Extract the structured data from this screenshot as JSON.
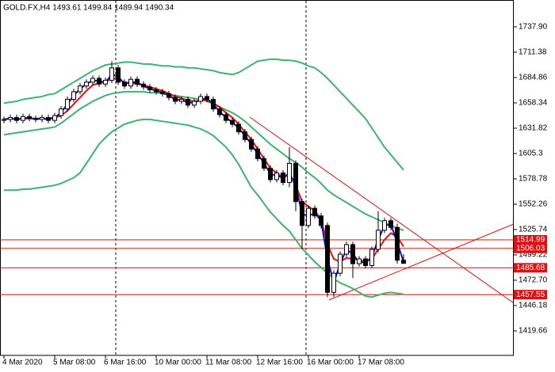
{
  "chart_data": {
    "type": "candlestick",
    "title": "GOLD.FX,H4  1493.61 1499.84 1489.94 1490.34",
    "categories": [
      "4 Mar 2020",
      null,
      null,
      null,
      null,
      null,
      null,
      null,
      "5 Mar 08:00",
      null,
      null,
      null,
      null,
      null,
      null,
      null,
      "6 Mar 16:00",
      null,
      null,
      null,
      null,
      null,
      null,
      null,
      "10 Mar 00:00",
      null,
      null,
      null,
      null,
      null,
      null,
      null,
      "11 Mar 08:00",
      null,
      null,
      null,
      null,
      null,
      null,
      null,
      "12 Mar 16:00",
      null,
      null,
      null,
      null,
      null,
      null,
      null,
      "16 Mar 00:00",
      null,
      null,
      null,
      null,
      null,
      null,
      null,
      "17 Mar 08:00",
      null,
      null,
      null,
      null,
      null,
      null,
      null
    ],
    "open": [
      1640,
      1641,
      1643,
      1640,
      1644,
      1642,
      1641,
      1643,
      1640,
      1645,
      1652,
      1662,
      1670,
      1676,
      1680,
      1684,
      1678,
      1682,
      1695,
      1680,
      1676,
      1683,
      1678,
      1675,
      1672,
      1670,
      1668,
      1664,
      1660,
      1662,
      1656,
      1660,
      1665,
      1662,
      1652,
      1646,
      1640,
      1636,
      1628,
      1620,
      1610,
      1600,
      1590,
      1578,
      1585,
      1575,
      1595,
      1555,
      1530,
      1548,
      1540,
      1530,
      1460,
      1480,
      1500,
      1510,
      1490,
      1495,
      1488,
      1505,
      1525,
      1535,
      1528,
      1493.61
    ],
    "high": [
      1644,
      1646,
      1646,
      1647,
      1647,
      1645,
      1646,
      1646,
      1648,
      1655,
      1665,
      1673,
      1679,
      1683,
      1687,
      1687,
      1685,
      1702,
      1698,
      1683,
      1686,
      1686,
      1681,
      1678,
      1675,
      1673,
      1671,
      1667,
      1665,
      1665,
      1663,
      1668,
      1668,
      1665,
      1655,
      1649,
      1643,
      1639,
      1631,
      1623,
      1613,
      1603,
      1593,
      1588,
      1588,
      1612,
      1598,
      1558,
      1551,
      1551,
      1543,
      1533,
      1483,
      1503,
      1513,
      1513,
      1498,
      1498,
      1508,
      1545,
      1538,
      1538,
      1532,
      1499.84
    ],
    "low": [
      1637,
      1638,
      1637,
      1637,
      1639,
      1638,
      1638,
      1637,
      1637,
      1642,
      1649,
      1659,
      1667,
      1673,
      1677,
      1675,
      1675,
      1679,
      1677,
      1673,
      1673,
      1675,
      1672,
      1669,
      1667,
      1665,
      1661,
      1657,
      1657,
      1653,
      1653,
      1657,
      1659,
      1649,
      1643,
      1637,
      1633,
      1625,
      1617,
      1607,
      1597,
      1587,
      1575,
      1575,
      1572,
      1570,
      1545,
      1505,
      1527,
      1537,
      1527,
      1455,
      1455,
      1477,
      1497,
      1475,
      1487,
      1485,
      1485,
      1502,
      1522,
      1525,
      1490,
      1489.94
    ],
    "close": [
      1641,
      1643,
      1640,
      1644,
      1642,
      1641,
      1643,
      1640,
      1645,
      1652,
      1662,
      1670,
      1676,
      1680,
      1684,
      1678,
      1682,
      1695,
      1680,
      1676,
      1683,
      1678,
      1675,
      1672,
      1670,
      1668,
      1664,
      1660,
      1662,
      1656,
      1660,
      1665,
      1662,
      1652,
      1646,
      1640,
      1636,
      1628,
      1620,
      1610,
      1600,
      1590,
      1578,
      1585,
      1575,
      1595,
      1555,
      1530,
      1548,
      1540,
      1530,
      1460,
      1480,
      1500,
      1510,
      1490,
      1495,
      1488,
      1505,
      1525,
      1535,
      1528,
      1493.61,
      1490.34
    ],
    "overlays": [
      {
        "color": "#3cb371",
        "values": [
          1658,
          1659,
          1660,
          1662,
          1663,
          1664,
          1665,
          1667,
          1668,
          1672,
          1676,
          1680,
          1684,
          1688,
          1692,
          1695,
          1698,
          1699,
          1700,
          1701,
          1701,
          1700,
          1699,
          1699,
          1698,
          1697,
          1697,
          1696,
          1696,
          1695,
          1695,
          1694,
          1693,
          1692,
          1690,
          1689,
          1688,
          1690,
          1694,
          1698,
          1702,
          1703,
          1704,
          1704,
          1703,
          1703,
          1702,
          1700,
          1697,
          1695,
          1690,
          1684,
          1677,
          1670,
          1663,
          1656,
          1649,
          1642,
          1632,
          1622,
          1612,
          1604,
          1596,
          1588
        ]
      },
      {
        "color": "#3cb371",
        "values": [
          1625,
          1626,
          1627,
          1628,
          1629,
          1630,
          1631,
          1632,
          1633,
          1637,
          1642,
          1647,
          1652,
          1656,
          1660,
          1663,
          1666,
          1668,
          1669,
          1670,
          1670,
          1670,
          1670,
          1669,
          1669,
          1668,
          1667,
          1666,
          1665,
          1664,
          1663,
          1662,
          1660,
          1657,
          1654,
          1651,
          1648,
          1644,
          1639,
          1633,
          1627,
          1621,
          1615,
          1610,
          1605,
          1600,
          1596,
          1591,
          1585,
          1580,
          1574,
          1567,
          1562,
          1558,
          1554,
          1550,
          1546,
          1542,
          1539,
          1536,
          1533,
          1530,
          1527,
          1525
        ]
      },
      {
        "color": "#3cb371",
        "values": [
          1567,
          1567,
          1567,
          1568,
          1568,
          1569,
          1570,
          1571,
          1572,
          1574,
          1577,
          1580,
          1585,
          1595,
          1605,
          1615,
          1622,
          1628,
          1632,
          1636,
          1638,
          1640,
          1641,
          1641,
          1640,
          1639,
          1638,
          1637,
          1636,
          1635,
          1633,
          1631,
          1628,
          1624,
          1618,
          1612,
          1604,
          1594,
          1582,
          1570,
          1562,
          1553,
          1544,
          1537,
          1530,
          1524,
          1515,
          1506,
          1499,
          1492,
          1486,
          1480,
          1474,
          1470,
          1467,
          1464,
          1460,
          1456,
          1455,
          1457,
          1459,
          1460,
          1459,
          1458
        ]
      },
      {
        "color": "#e01010",
        "values": [
          1641,
          1642,
          1641,
          1642,
          1642,
          1642,
          1642,
          1642,
          1643,
          1645,
          1650,
          1657,
          1664,
          1671,
          1677,
          1679,
          1680,
          1684,
          1683,
          1680,
          1679,
          1678,
          1677,
          1675,
          1673,
          1671,
          1668,
          1665,
          1663,
          1661,
          1660,
          1661,
          1661,
          1658,
          1654,
          1648,
          1643,
          1636,
          1628,
          1620,
          1610,
          1600,
          1590,
          1585,
          1580,
          1583,
          1572,
          1555,
          1550,
          1545,
          1537,
          1510,
          1495,
          1492,
          1496,
          1495,
          1494,
          1492,
          1495,
          1505,
          1515,
          1522,
          1518,
          1508
        ]
      },
      {
        "color": "#1010d0",
        "values": [
          1641,
          1642,
          1641,
          1642,
          1643,
          1641,
          1642,
          1641,
          1643,
          1648,
          1657,
          1666,
          1673,
          1678,
          1682,
          1681,
          1680,
          1688,
          1686,
          1678,
          1680,
          1680,
          1676,
          1673,
          1671,
          1669,
          1666,
          1662,
          1661,
          1659,
          1658,
          1662,
          1663,
          1657,
          1649,
          1643,
          1638,
          1632,
          1624,
          1615,
          1605,
          1595,
          1584,
          1582,
          1580,
          1585,
          1572,
          1542,
          1540,
          1543,
          1535,
          1495,
          1470,
          1490,
          1505,
          1500,
          1492,
          1491,
          1497,
          1515,
          1530,
          1531,
          1512,
          1492
        ]
      }
    ],
    "levels": [
      1514.99,
      1506.03,
      1485.68,
      1457.55
    ],
    "level_color": "#e01010",
    "ylim": [
      1394,
      1765.2
    ],
    "yticks": [
      {
        "value": 1737.9,
        "label": "1737.90"
      },
      1711.38,
      1684.86,
      1658.34,
      1631.82,
      1605.3,
      1578.78,
      1552.26,
      1525.74,
      1499.22,
      {
        "value": 1472.7,
        "label": "1472.70"
      },
      1446.18,
      1419.66
    ]
  }
}
